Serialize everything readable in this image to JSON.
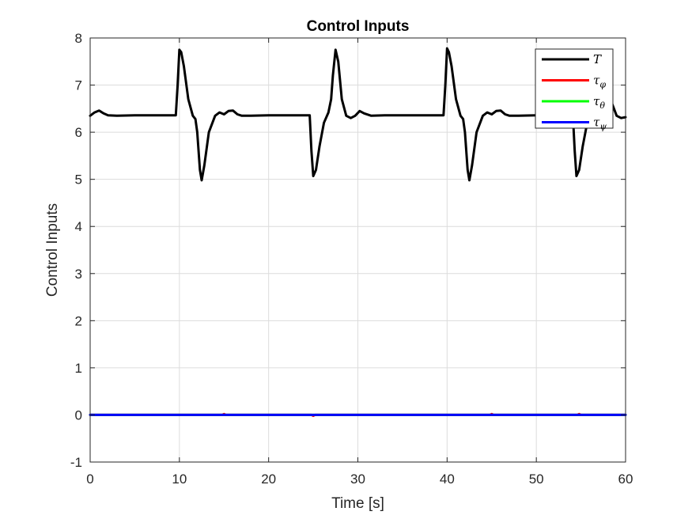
{
  "chart_data": {
    "type": "line",
    "title": "Control Inputs",
    "xlabel": "Time [s]",
    "ylabel": "Control Inputs",
    "xlim": [
      0,
      60
    ],
    "ylim": [
      -1,
      8
    ],
    "xticks": [
      0,
      10,
      20,
      30,
      40,
      50,
      60
    ],
    "yticks": [
      -1,
      0,
      1,
      2,
      3,
      4,
      5,
      6,
      7,
      8
    ],
    "grid": true,
    "legend_position": "top-right",
    "series": [
      {
        "name": "T",
        "legend_main": "T",
        "legend_sub": "",
        "color": "#000000",
        "x": [
          0,
          0.5,
          1,
          1.5,
          2,
          3,
          5,
          8,
          9.6,
          9.8,
          10.0,
          10.2,
          10.5,
          11.0,
          11.5,
          11.8,
          12.0,
          12.3,
          12.5,
          12.8,
          13.3,
          14.0,
          14.5,
          15.0,
          15.5,
          16.0,
          16.5,
          17.0,
          18,
          20,
          22,
          24.6,
          24.8,
          25.0,
          25.3,
          25.7,
          26.2,
          26.7,
          27.0,
          27.2,
          27.5,
          27.8,
          28.2,
          28.7,
          29.2,
          29.7,
          30.2,
          30.7,
          31.5,
          33,
          35,
          37,
          39.6,
          39.8,
          40.0,
          40.2,
          40.5,
          41.0,
          41.5,
          41.8,
          42.0,
          42.3,
          42.5,
          42.8,
          43.3,
          44.0,
          44.5,
          45.0,
          45.5,
          46.0,
          46.5,
          47.0,
          48,
          50,
          52,
          54.1,
          54.3,
          54.5,
          54.8,
          55.2,
          55.7,
          56.2,
          56.7,
          57.0,
          57.3,
          57.6,
          58.0,
          58.5,
          59.0,
          59.5,
          60
        ],
        "y": [
          6.35,
          6.42,
          6.46,
          6.4,
          6.36,
          6.35,
          6.36,
          6.36,
          6.36,
          7.0,
          7.75,
          7.7,
          7.4,
          6.7,
          6.35,
          6.28,
          6.0,
          5.2,
          4.98,
          5.3,
          6.0,
          6.35,
          6.42,
          6.38,
          6.45,
          6.46,
          6.38,
          6.35,
          6.35,
          6.36,
          6.36,
          6.36,
          5.6,
          5.07,
          5.2,
          5.7,
          6.2,
          6.42,
          6.7,
          7.2,
          7.75,
          7.5,
          6.7,
          6.35,
          6.3,
          6.35,
          6.45,
          6.4,
          6.35,
          6.36,
          6.36,
          6.36,
          6.36,
          7.0,
          7.78,
          7.7,
          7.4,
          6.7,
          6.35,
          6.28,
          6.0,
          5.2,
          4.98,
          5.3,
          6.0,
          6.35,
          6.42,
          6.38,
          6.45,
          6.46,
          6.38,
          6.35,
          6.35,
          6.36,
          6.36,
          6.36,
          5.6,
          5.07,
          5.2,
          5.7,
          6.2,
          6.42,
          6.7,
          7.1,
          7.6,
          7.7,
          7.2,
          6.6,
          6.35,
          6.3,
          6.32
        ]
      },
      {
        "name": "tau_phi",
        "legend_main": "τ",
        "legend_sub": "φ",
        "color": "#ff0000",
        "x": [
          0,
          14.8,
          15.0,
          15.2,
          24.8,
          25.0,
          25.2,
          44.8,
          45.0,
          45.2,
          54.6,
          54.8,
          55.0,
          60
        ],
        "y": [
          0,
          0,
          0.02,
          0,
          0,
          -0.02,
          0,
          0,
          0.02,
          0,
          0,
          0.02,
          0,
          0
        ]
      },
      {
        "name": "tau_theta",
        "legend_main": "τ",
        "legend_sub": "θ",
        "color": "#00ff00",
        "x": [
          0,
          60
        ],
        "y": [
          0,
          0
        ]
      },
      {
        "name": "tau_psi",
        "legend_main": "τ",
        "legend_sub": "ψ",
        "color": "#0000ff",
        "x": [
          0,
          60
        ],
        "y": [
          0,
          0
        ]
      }
    ]
  }
}
